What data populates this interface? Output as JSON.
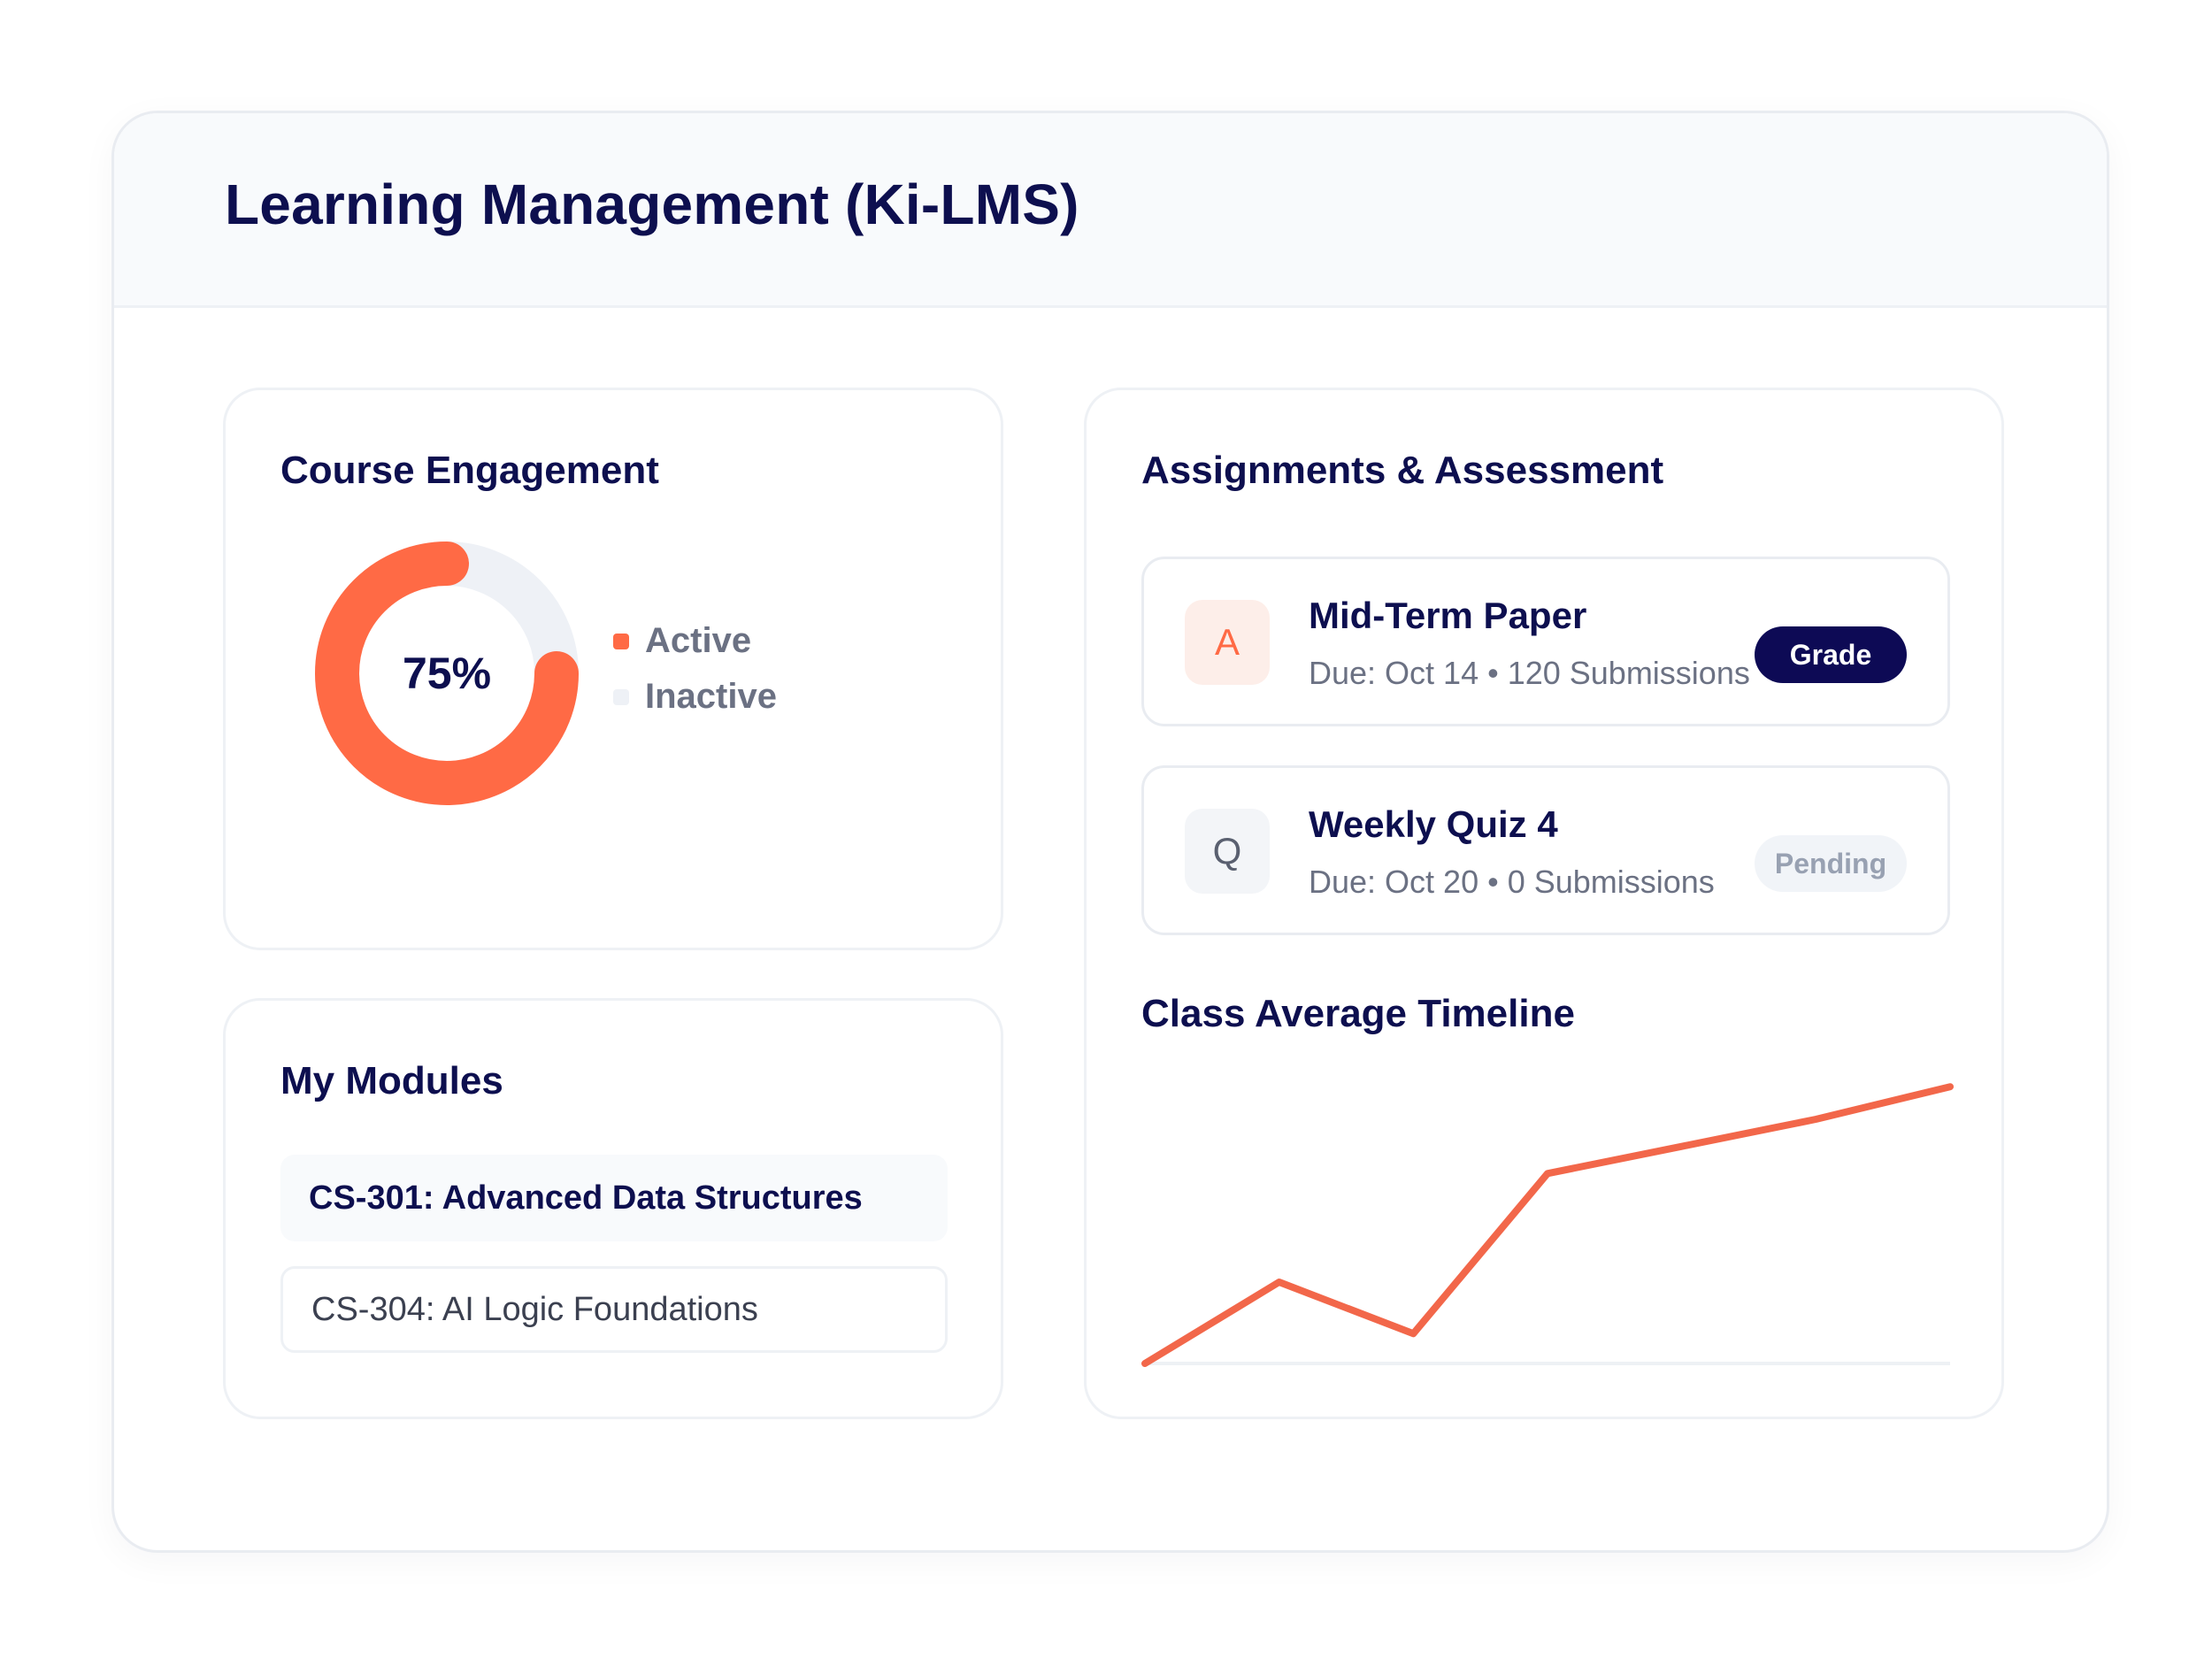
{
  "header": {
    "title": "Learning Management (Ki-LMS)"
  },
  "engagement": {
    "title": "Course Engagement",
    "center_label": "75%",
    "active_fraction": 0.75,
    "legend": [
      {
        "label": "Active",
        "color": "#ff6a45"
      },
      {
        "label": "Inactive",
        "color": "#eef1f6"
      }
    ]
  },
  "modules": {
    "title": "My Modules",
    "items": [
      {
        "label": "CS-301: Advanced Data Structures",
        "active": true
      },
      {
        "label": "CS-304: AI Logic Foundations",
        "active": false
      }
    ]
  },
  "assignments": {
    "title": "Assignments & Assessment",
    "items": [
      {
        "icon_letter": "A",
        "name": "Mid-Term Paper",
        "meta": "Due: Oct 14 • 120 Submissions",
        "action": "Grade"
      },
      {
        "icon_letter": "Q",
        "name": "Weekly Quiz 4",
        "meta": "Due: Oct 20 • 0 Submissions",
        "status": "Pending"
      }
    ]
  },
  "timeline": {
    "title": "Class Average Timeline"
  },
  "chart_data": {
    "type": "line",
    "title": "Class Average Timeline",
    "x": [
      0,
      1,
      2,
      3,
      4,
      5,
      6
    ],
    "series": [
      {
        "values": [
          0,
          30,
          11,
          70,
          80,
          90,
          102
        ],
        "color": "#f2674a"
      }
    ],
    "ylim": [
      0,
      105
    ],
    "grid": false,
    "baseline": true
  },
  "colors": {
    "accent": "#ff6a45",
    "navy": "#0d0f4f",
    "button_dark": "#0d0a55"
  }
}
